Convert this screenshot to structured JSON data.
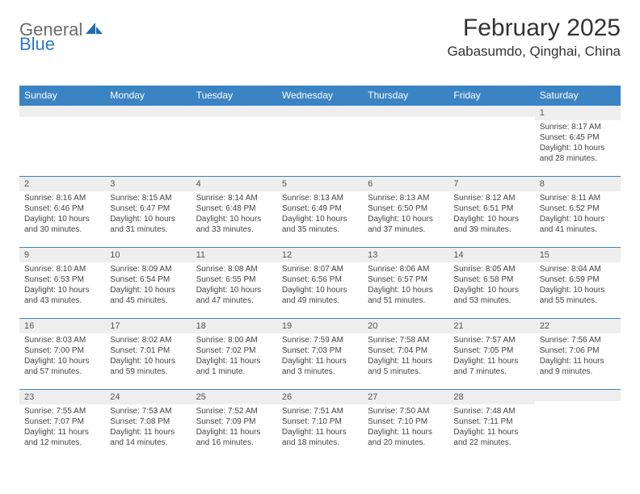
{
  "brand": {
    "text_gray": "General",
    "text_blue": "Blue"
  },
  "title": "February 2025",
  "location": "Gabasumdo, Qinghai, China",
  "colors": {
    "header_bg": "#3b84c4",
    "header_text": "#ffffff",
    "row_divider": "#3b84c4",
    "daynum_bg": "#eeeeee",
    "logo_gray": "#6b6b6b",
    "logo_blue": "#2f7bbf",
    "body_text": "#444444"
  },
  "weekdays": [
    "Sunday",
    "Monday",
    "Tuesday",
    "Wednesday",
    "Thursday",
    "Friday",
    "Saturday"
  ],
  "weeks": [
    [
      {
        "n": "",
        "sr": "",
        "ss": "",
        "dl": ""
      },
      {
        "n": "",
        "sr": "",
        "ss": "",
        "dl": ""
      },
      {
        "n": "",
        "sr": "",
        "ss": "",
        "dl": ""
      },
      {
        "n": "",
        "sr": "",
        "ss": "",
        "dl": ""
      },
      {
        "n": "",
        "sr": "",
        "ss": "",
        "dl": ""
      },
      {
        "n": "",
        "sr": "",
        "ss": "",
        "dl": ""
      },
      {
        "n": "1",
        "sr": "Sunrise: 8:17 AM",
        "ss": "Sunset: 6:45 PM",
        "dl": "Daylight: 10 hours and 28 minutes."
      }
    ],
    [
      {
        "n": "2",
        "sr": "Sunrise: 8:16 AM",
        "ss": "Sunset: 6:46 PM",
        "dl": "Daylight: 10 hours and 30 minutes."
      },
      {
        "n": "3",
        "sr": "Sunrise: 8:15 AM",
        "ss": "Sunset: 6:47 PM",
        "dl": "Daylight: 10 hours and 31 minutes."
      },
      {
        "n": "4",
        "sr": "Sunrise: 8:14 AM",
        "ss": "Sunset: 6:48 PM",
        "dl": "Daylight: 10 hours and 33 minutes."
      },
      {
        "n": "5",
        "sr": "Sunrise: 8:13 AM",
        "ss": "Sunset: 6:49 PM",
        "dl": "Daylight: 10 hours and 35 minutes."
      },
      {
        "n": "6",
        "sr": "Sunrise: 8:13 AM",
        "ss": "Sunset: 6:50 PM",
        "dl": "Daylight: 10 hours and 37 minutes."
      },
      {
        "n": "7",
        "sr": "Sunrise: 8:12 AM",
        "ss": "Sunset: 6:51 PM",
        "dl": "Daylight: 10 hours and 39 minutes."
      },
      {
        "n": "8",
        "sr": "Sunrise: 8:11 AM",
        "ss": "Sunset: 6:52 PM",
        "dl": "Daylight: 10 hours and 41 minutes."
      }
    ],
    [
      {
        "n": "9",
        "sr": "Sunrise: 8:10 AM",
        "ss": "Sunset: 6:53 PM",
        "dl": "Daylight: 10 hours and 43 minutes."
      },
      {
        "n": "10",
        "sr": "Sunrise: 8:09 AM",
        "ss": "Sunset: 6:54 PM",
        "dl": "Daylight: 10 hours and 45 minutes."
      },
      {
        "n": "11",
        "sr": "Sunrise: 8:08 AM",
        "ss": "Sunset: 6:55 PM",
        "dl": "Daylight: 10 hours and 47 minutes."
      },
      {
        "n": "12",
        "sr": "Sunrise: 8:07 AM",
        "ss": "Sunset: 6:56 PM",
        "dl": "Daylight: 10 hours and 49 minutes."
      },
      {
        "n": "13",
        "sr": "Sunrise: 8:06 AM",
        "ss": "Sunset: 6:57 PM",
        "dl": "Daylight: 10 hours and 51 minutes."
      },
      {
        "n": "14",
        "sr": "Sunrise: 8:05 AM",
        "ss": "Sunset: 6:58 PM",
        "dl": "Daylight: 10 hours and 53 minutes."
      },
      {
        "n": "15",
        "sr": "Sunrise: 8:04 AM",
        "ss": "Sunset: 6:59 PM",
        "dl": "Daylight: 10 hours and 55 minutes."
      }
    ],
    [
      {
        "n": "16",
        "sr": "Sunrise: 8:03 AM",
        "ss": "Sunset: 7:00 PM",
        "dl": "Daylight: 10 hours and 57 minutes."
      },
      {
        "n": "17",
        "sr": "Sunrise: 8:02 AM",
        "ss": "Sunset: 7:01 PM",
        "dl": "Daylight: 10 hours and 59 minutes."
      },
      {
        "n": "18",
        "sr": "Sunrise: 8:00 AM",
        "ss": "Sunset: 7:02 PM",
        "dl": "Daylight: 11 hours and 1 minute."
      },
      {
        "n": "19",
        "sr": "Sunrise: 7:59 AM",
        "ss": "Sunset: 7:03 PM",
        "dl": "Daylight: 11 hours and 3 minutes."
      },
      {
        "n": "20",
        "sr": "Sunrise: 7:58 AM",
        "ss": "Sunset: 7:04 PM",
        "dl": "Daylight: 11 hours and 5 minutes."
      },
      {
        "n": "21",
        "sr": "Sunrise: 7:57 AM",
        "ss": "Sunset: 7:05 PM",
        "dl": "Daylight: 11 hours and 7 minutes."
      },
      {
        "n": "22",
        "sr": "Sunrise: 7:56 AM",
        "ss": "Sunset: 7:06 PM",
        "dl": "Daylight: 11 hours and 9 minutes."
      }
    ],
    [
      {
        "n": "23",
        "sr": "Sunrise: 7:55 AM",
        "ss": "Sunset: 7:07 PM",
        "dl": "Daylight: 11 hours and 12 minutes."
      },
      {
        "n": "24",
        "sr": "Sunrise: 7:53 AM",
        "ss": "Sunset: 7:08 PM",
        "dl": "Daylight: 11 hours and 14 minutes."
      },
      {
        "n": "25",
        "sr": "Sunrise: 7:52 AM",
        "ss": "Sunset: 7:09 PM",
        "dl": "Daylight: 11 hours and 16 minutes."
      },
      {
        "n": "26",
        "sr": "Sunrise: 7:51 AM",
        "ss": "Sunset: 7:10 PM",
        "dl": "Daylight: 11 hours and 18 minutes."
      },
      {
        "n": "27",
        "sr": "Sunrise: 7:50 AM",
        "ss": "Sunset: 7:10 PM",
        "dl": "Daylight: 11 hours and 20 minutes."
      },
      {
        "n": "28",
        "sr": "Sunrise: 7:48 AM",
        "ss": "Sunset: 7:11 PM",
        "dl": "Daylight: 11 hours and 22 minutes."
      },
      {
        "n": "",
        "sr": "",
        "ss": "",
        "dl": ""
      }
    ]
  ]
}
